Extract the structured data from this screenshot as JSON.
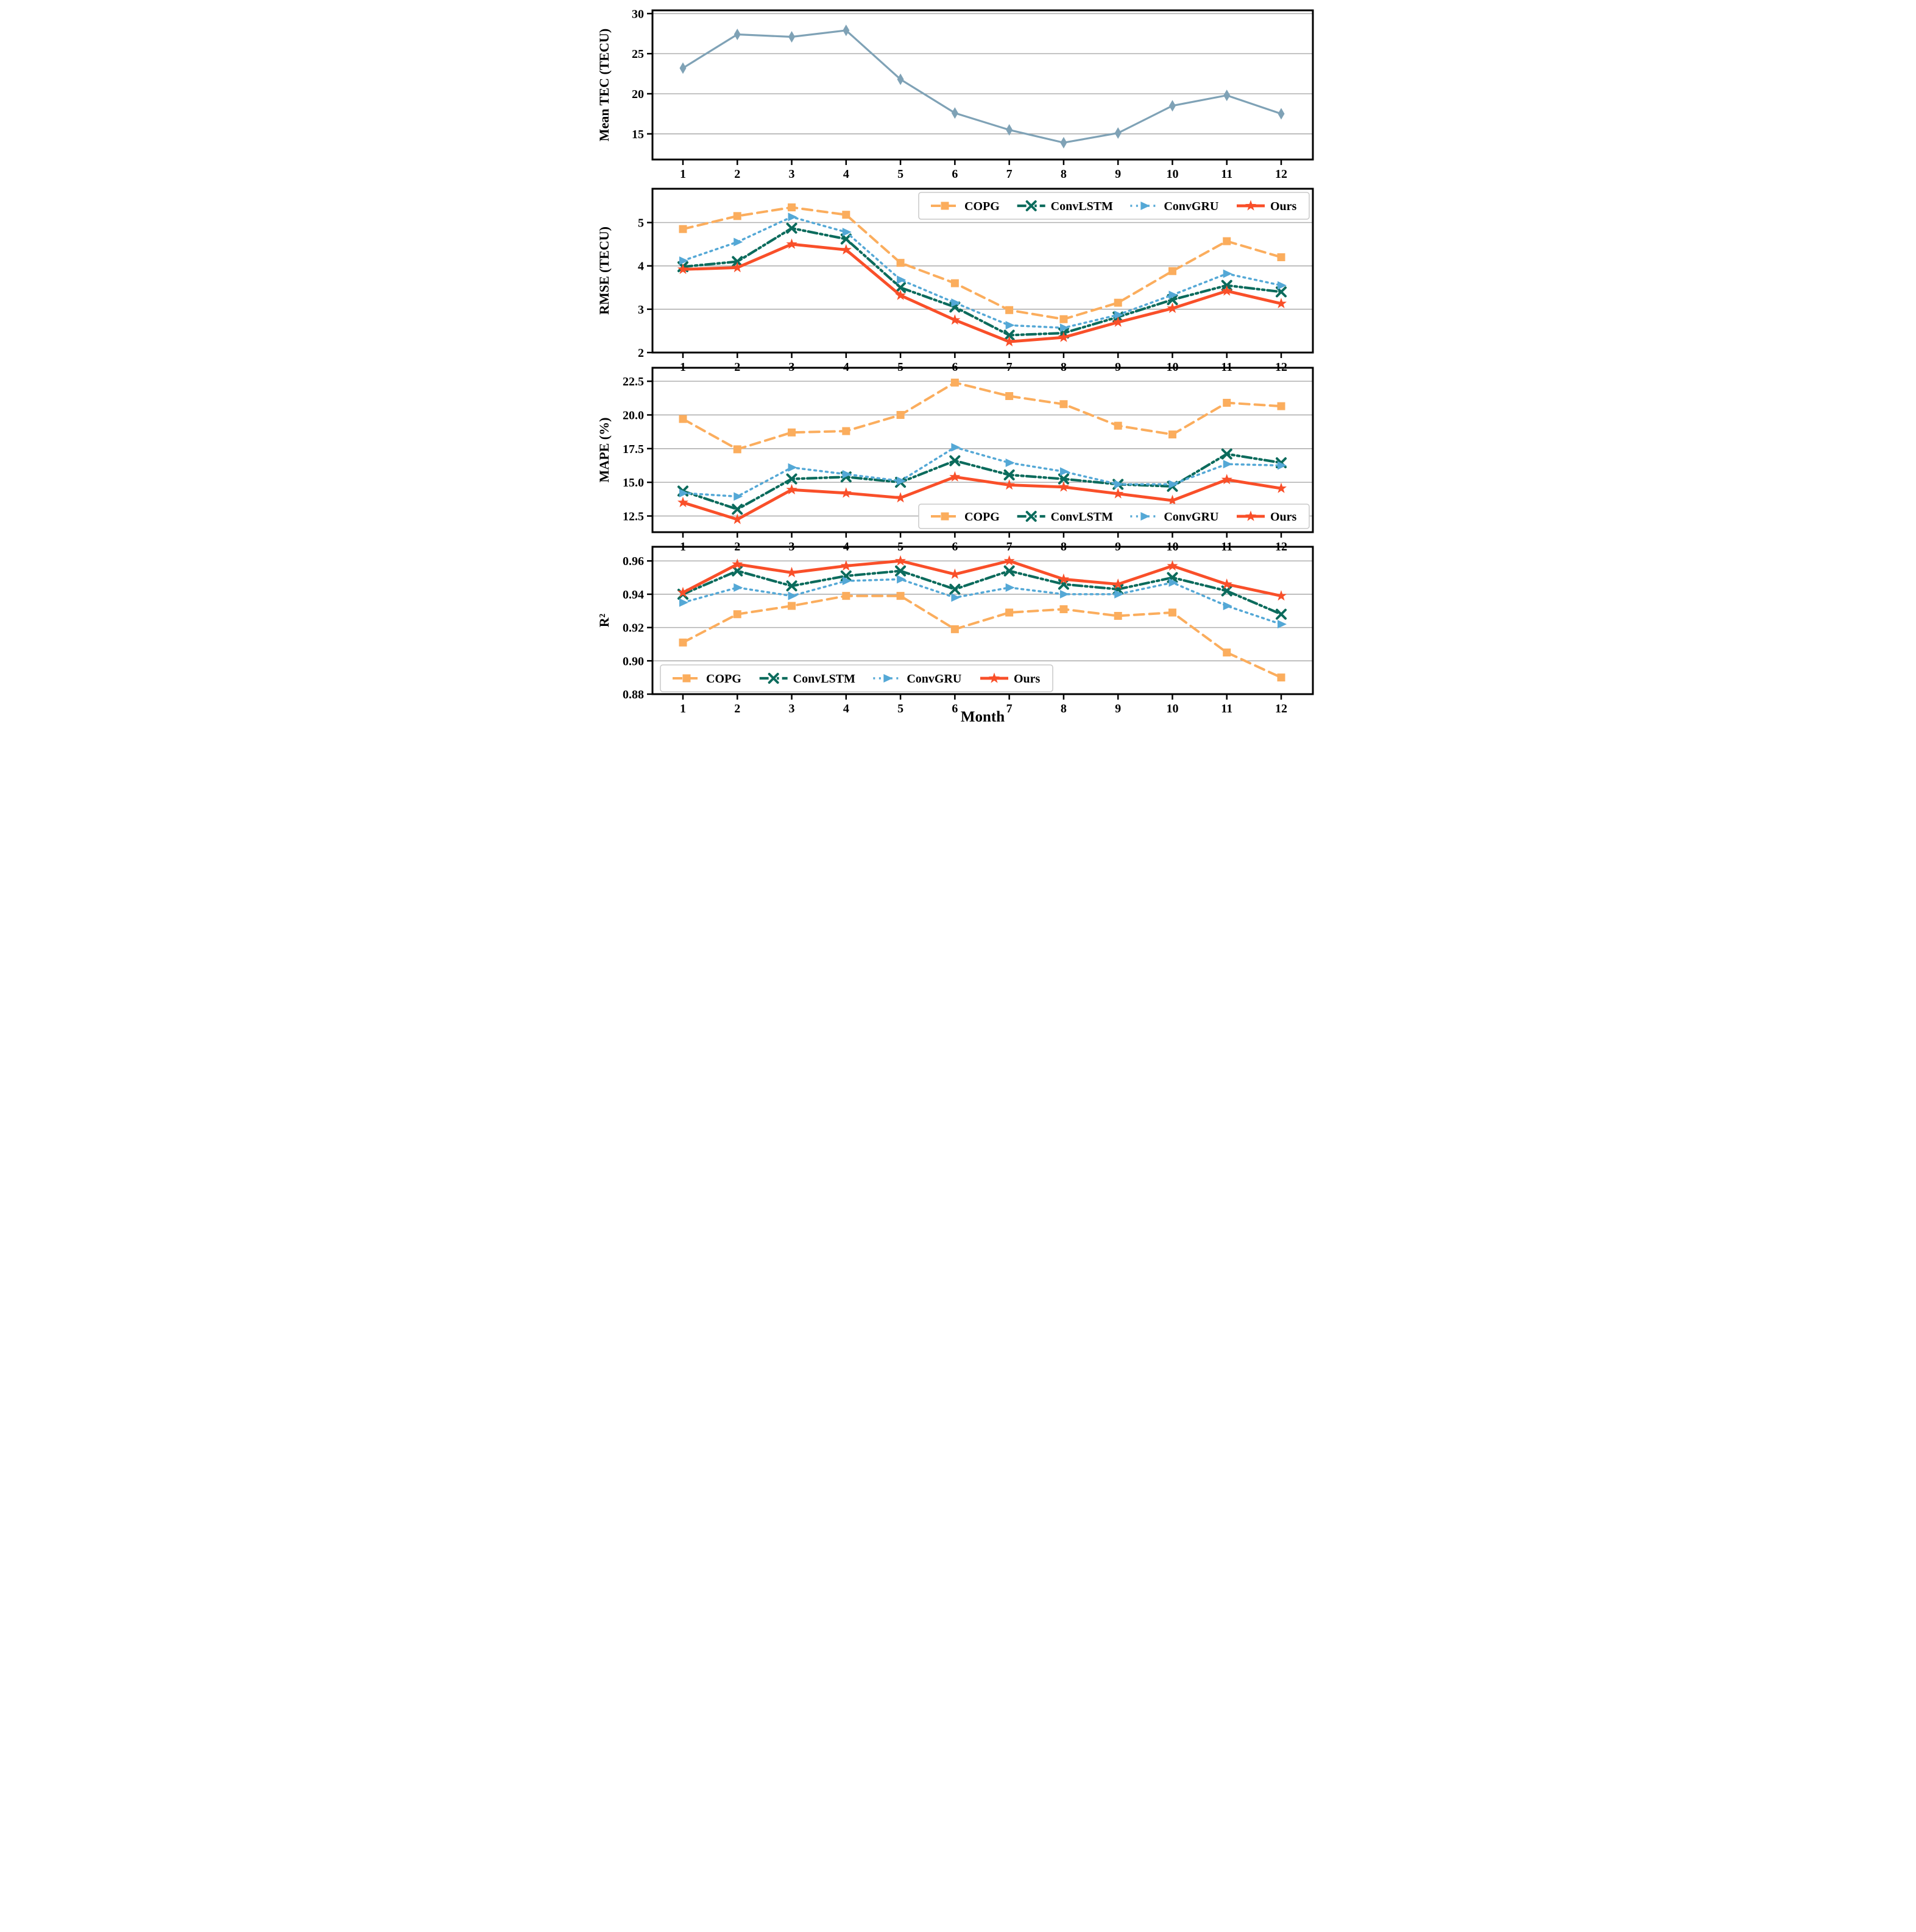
{
  "figure": {
    "xlabel": "Month",
    "x_tick_labels": [
      "1",
      "2",
      "3",
      "4",
      "5",
      "6",
      "7",
      "8",
      "9",
      "10",
      "11",
      "12"
    ],
    "background_color": "#ffffff",
    "grid_color": "#b0b0b0",
    "axis_color": "#000000"
  },
  "models": [
    {
      "name": "COPG",
      "color": "#FBAD5D",
      "marker": "square",
      "line_style": "dashed"
    },
    {
      "name": "ConvLSTM",
      "color": "#0B6B5C",
      "marker": "x",
      "line_style": "dashdot"
    },
    {
      "name": "ConvGRU",
      "color": "#54A8D6",
      "marker": "triangle-right",
      "line_style": "dotted"
    },
    {
      "name": "Ours",
      "color": "#F94F29",
      "marker": "star",
      "line_style": "solid"
    }
  ],
  "chart_data": [
    {
      "type": "line",
      "id": "mean-tec",
      "ylabel": "Mean TEC (TECU)",
      "ylim": [
        11.8,
        30.4
      ],
      "ytick_values": [
        30,
        25,
        20,
        15
      ],
      "ytick_labels": [
        "30",
        "25",
        "20",
        "15"
      ],
      "legend": "none",
      "series": [
        {
          "name": "Mean TEC",
          "color": "#7FA2B6",
          "marker": "diamond",
          "line_style": "solid",
          "values": [
            23.2,
            27.4,
            27.1,
            27.9,
            21.8,
            17.6,
            15.5,
            13.9,
            15.1,
            18.5,
            19.8,
            17.5
          ]
        }
      ]
    },
    {
      "type": "line",
      "id": "rmse",
      "ylabel": "RMSE (TECU)",
      "ylim": [
        2,
        5.78
      ],
      "ytick_values": [
        5,
        4,
        3,
        2
      ],
      "ytick_labels": [
        "5",
        "4",
        "3",
        "2"
      ],
      "legend": "top-right",
      "series": [
        {
          "name": "COPG",
          "values": [
            4.85,
            5.15,
            5.35,
            5.18,
            4.07,
            3.6,
            2.98,
            2.77,
            3.15,
            3.88,
            4.57,
            4.2
          ]
        },
        {
          "name": "ConvLSTM",
          "values": [
            3.98,
            4.1,
            4.87,
            4.62,
            3.5,
            3.05,
            2.4,
            2.45,
            2.82,
            3.22,
            3.55,
            3.4
          ]
        },
        {
          "name": "ConvGRU",
          "values": [
            4.12,
            4.55,
            5.13,
            4.78,
            3.68,
            3.15,
            2.63,
            2.57,
            2.87,
            3.33,
            3.82,
            3.55
          ]
        },
        {
          "name": "Ours",
          "values": [
            3.92,
            3.96,
            4.5,
            4.37,
            3.32,
            2.75,
            2.25,
            2.35,
            2.7,
            3.02,
            3.42,
            3.13
          ]
        }
      ]
    },
    {
      "type": "line",
      "id": "mape",
      "ylabel": "MAPE (%)",
      "ylim": [
        11.3,
        23.5
      ],
      "ytick_values": [
        22.5,
        20.0,
        17.5,
        15.0,
        12.5
      ],
      "ytick_labels": [
        "22.5",
        "20.0",
        "17.5",
        "15.0",
        "12.5"
      ],
      "legend": "bottom-right",
      "series": [
        {
          "name": "COPG",
          "values": [
            19.7,
            17.45,
            18.7,
            18.8,
            20.0,
            22.4,
            21.4,
            20.8,
            19.2,
            18.55,
            20.9,
            20.65
          ]
        },
        {
          "name": "ConvLSTM",
          "values": [
            14.35,
            13.0,
            15.25,
            15.4,
            15.0,
            16.6,
            15.55,
            15.25,
            14.85,
            14.7,
            17.1,
            16.45
          ]
        },
        {
          "name": "ConvGRU",
          "values": [
            14.2,
            13.95,
            16.1,
            15.6,
            15.1,
            17.6,
            16.45,
            15.8,
            14.85,
            14.85,
            16.35,
            16.25
          ]
        },
        {
          "name": "Ours",
          "values": [
            13.5,
            12.25,
            14.45,
            14.2,
            13.85,
            15.4,
            14.8,
            14.65,
            14.15,
            13.65,
            15.2,
            14.55
          ]
        }
      ]
    },
    {
      "type": "line",
      "id": "r2",
      "ylabel": "R²",
      "ylim": [
        0.88,
        0.9685
      ],
      "ytick_values": [
        0.96,
        0.94,
        0.92,
        0.9,
        0.88
      ],
      "ytick_labels": [
        "0.96",
        "0.94",
        "0.92",
        "0.90",
        "0.88"
      ],
      "legend": "bottom-left",
      "series": [
        {
          "name": "COPG",
          "values": [
            0.911,
            0.928,
            0.933,
            0.939,
            0.939,
            0.919,
            0.929,
            0.931,
            0.927,
            0.929,
            0.905,
            0.89
          ]
        },
        {
          "name": "ConvLSTM",
          "values": [
            0.94,
            0.954,
            0.945,
            0.951,
            0.954,
            0.943,
            0.954,
            0.946,
            0.943,
            0.95,
            0.942,
            0.928
          ]
        },
        {
          "name": "ConvGRU",
          "values": [
            0.935,
            0.944,
            0.939,
            0.948,
            0.949,
            0.938,
            0.944,
            0.94,
            0.94,
            0.947,
            0.933,
            0.922
          ]
        },
        {
          "name": "Ours",
          "values": [
            0.941,
            0.958,
            0.953,
            0.957,
            0.96,
            0.952,
            0.96,
            0.949,
            0.946,
            0.957,
            0.946,
            0.939
          ]
        }
      ]
    }
  ]
}
